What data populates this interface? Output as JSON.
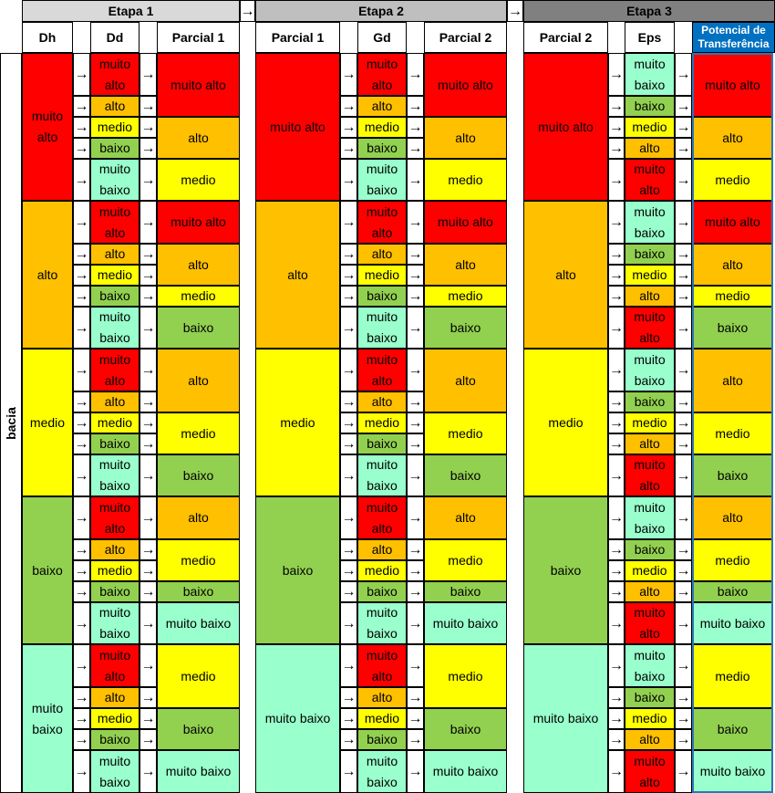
{
  "stages": [
    {
      "label": "Etapa 1",
      "color": "#d9d9d9"
    },
    {
      "label": "Etapa 2",
      "color": "#bfbfbf"
    },
    {
      "label": "Etapa 3",
      "color": "#808080"
    }
  ],
  "stage_arrow": "→",
  "row_label": "bacia",
  "headers": {
    "dh": "Dh",
    "dd": "Dd",
    "parcial1_a": "Parcial 1",
    "parcial1_b": "Parcial 1",
    "gd": "Gd",
    "parcial2_a": "Parcial 2",
    "parcial2_b": "Parcial 2",
    "eps": "Eps",
    "potencial": "Potencial de Transferência"
  },
  "colors": {
    "muito alto": "#ff0000",
    "alto": "#ffc000",
    "medio": "#ffff00",
    "baixo": "#92d050",
    "muito baixo": "#99ffcc",
    "header_accent": "#0070c0",
    "outline": "#2e75b6"
  },
  "level_labels": {
    "muito alto": "muito alto",
    "alto": "alto",
    "medio": "medio",
    "baixo": "baixo",
    "muito baixo": "muito baixo"
  },
  "groups": [
    {
      "dh": "muito alto",
      "parcial1": "muito alto",
      "parcial2": "muito alto",
      "dd": [
        "muito alto",
        "alto",
        "medio",
        "baixo",
        "muito baixo"
      ],
      "p1": [
        "muito alto",
        "alto",
        "medio"
      ],
      "gd": [
        "muito alto",
        "alto",
        "medio",
        "baixo",
        "muito baixo"
      ],
      "p2": [
        "muito alto",
        "alto",
        "medio"
      ],
      "eps": [
        "muito baixo",
        "baixo",
        "medio",
        "alto",
        "muito alto"
      ],
      "pt": [
        "muito alto",
        "alto",
        "medio"
      ]
    },
    {
      "dh": "alto",
      "parcial1": "alto",
      "parcial2": "alto",
      "dd": [
        "muito alto",
        "alto",
        "medio",
        "baixo",
        "muito baixo"
      ],
      "p1": [
        "muito alto",
        "alto",
        "medio",
        "baixo"
      ],
      "gd": [
        "muito alto",
        "alto",
        "medio",
        "baixo",
        "muito baixo"
      ],
      "p2": [
        "muito alto",
        "alto",
        "medio",
        "baixo"
      ],
      "eps": [
        "muito baixo",
        "baixo",
        "medio",
        "alto",
        "muito alto"
      ],
      "pt": [
        "muito alto",
        "alto",
        "medio",
        "baixo"
      ]
    },
    {
      "dh": "medio",
      "parcial1": "medio",
      "parcial2": "medio",
      "dd": [
        "muito alto",
        "alto",
        "medio",
        "baixo",
        "muito baixo"
      ],
      "p1": [
        "alto",
        "medio",
        "baixo"
      ],
      "gd": [
        "muito alto",
        "alto",
        "medio",
        "baixo",
        "muito baixo"
      ],
      "p2": [
        "alto",
        "medio",
        "baixo"
      ],
      "eps": [
        "muito baixo",
        "baixo",
        "medio",
        "alto",
        "muito alto"
      ],
      "pt": [
        "alto",
        "medio",
        "baixo"
      ]
    },
    {
      "dh": "baixo",
      "parcial1": "baixo",
      "parcial2": "baixo",
      "dd": [
        "muito alto",
        "alto",
        "medio",
        "baixo",
        "muito baixo"
      ],
      "p1": [
        "alto",
        "medio",
        "baixo",
        "muito baixo"
      ],
      "gd": [
        "muito alto",
        "alto",
        "medio",
        "baixo",
        "muito baixo"
      ],
      "p2": [
        "alto",
        "medio",
        "baixo",
        "muito baixo"
      ],
      "eps": [
        "muito baixo",
        "baixo",
        "medio",
        "alto",
        "muito alto"
      ],
      "pt": [
        "alto",
        "medio",
        "baixo",
        "muito baixo"
      ]
    },
    {
      "dh": "muito baixo",
      "parcial1": "muito baixo",
      "parcial2": "muito baixo",
      "dd": [
        "muito alto",
        "alto",
        "medio",
        "baixo",
        "muito baixo"
      ],
      "p1": [
        "medio",
        "baixo",
        "muito baixo"
      ],
      "gd": [
        "muito alto",
        "alto",
        "medio",
        "baixo",
        "muito baixo"
      ],
      "p2": [
        "medio",
        "baixo",
        "muito baixo"
      ],
      "eps": [
        "muito baixo",
        "baixo",
        "medio",
        "alto",
        "muito alto"
      ],
      "pt": [
        "medio",
        "baixo",
        "muito baixo"
      ]
    }
  ]
}
